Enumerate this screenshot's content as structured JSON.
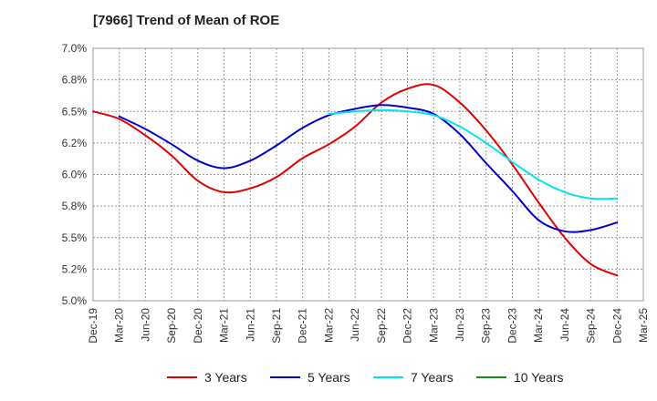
{
  "chart_data": {
    "type": "line",
    "title": "[7966]  Trend of Mean of ROE",
    "xlabel": "",
    "ylabel": "",
    "ylim": [
      5.0,
      7.0
    ],
    "y_ticks": [
      "5.0%",
      "5.2%",
      "5.5%",
      "5.8%",
      "6.0%",
      "6.2%",
      "6.5%",
      "6.8%",
      "7.0%"
    ],
    "y_tick_values": [
      5.0,
      5.25,
      5.5,
      5.75,
      6.0,
      6.25,
      6.5,
      6.75,
      7.0
    ],
    "categories": [
      "Dec-19",
      "Mar-20",
      "Jun-20",
      "Sep-20",
      "Dec-20",
      "Mar-21",
      "Jun-21",
      "Sep-21",
      "Dec-21",
      "Mar-22",
      "Jun-22",
      "Sep-22",
      "Dec-22",
      "Mar-23",
      "Jun-23",
      "Sep-23",
      "Dec-23",
      "Mar-24",
      "Jun-24",
      "Sep-24",
      "Dec-24",
      "Mar-25"
    ],
    "grid": true,
    "legend_position": "bottom",
    "series": [
      {
        "name": "3 Years",
        "color": "#e00000",
        "values": [
          6.5,
          6.44,
          6.31,
          6.15,
          5.95,
          5.86,
          5.89,
          5.98,
          6.13,
          6.24,
          6.38,
          6.57,
          6.68,
          6.71,
          6.57,
          6.35,
          6.08,
          5.78,
          5.5,
          5.29,
          5.2,
          null
        ]
      },
      {
        "name": "5 Years",
        "color": "#0000cc",
        "values": [
          null,
          6.46,
          6.36,
          6.24,
          6.11,
          6.05,
          6.11,
          6.23,
          6.37,
          6.47,
          6.52,
          6.55,
          6.53,
          6.48,
          6.32,
          6.09,
          5.87,
          5.64,
          5.55,
          5.56,
          5.62,
          null
        ]
      },
      {
        "name": "7 Years",
        "color": "#00e5ee",
        "values": [
          null,
          null,
          null,
          null,
          null,
          null,
          null,
          null,
          null,
          6.48,
          6.5,
          6.51,
          6.5,
          6.47,
          6.38,
          6.25,
          6.1,
          5.96,
          5.86,
          5.81,
          5.81,
          null
        ]
      },
      {
        "name": "10 Years",
        "color": "#1a8c1a",
        "values": [
          null,
          null,
          null,
          null,
          null,
          null,
          null,
          null,
          null,
          null,
          null,
          null,
          null,
          null,
          null,
          null,
          null,
          null,
          null,
          null,
          null,
          null
        ]
      }
    ]
  }
}
